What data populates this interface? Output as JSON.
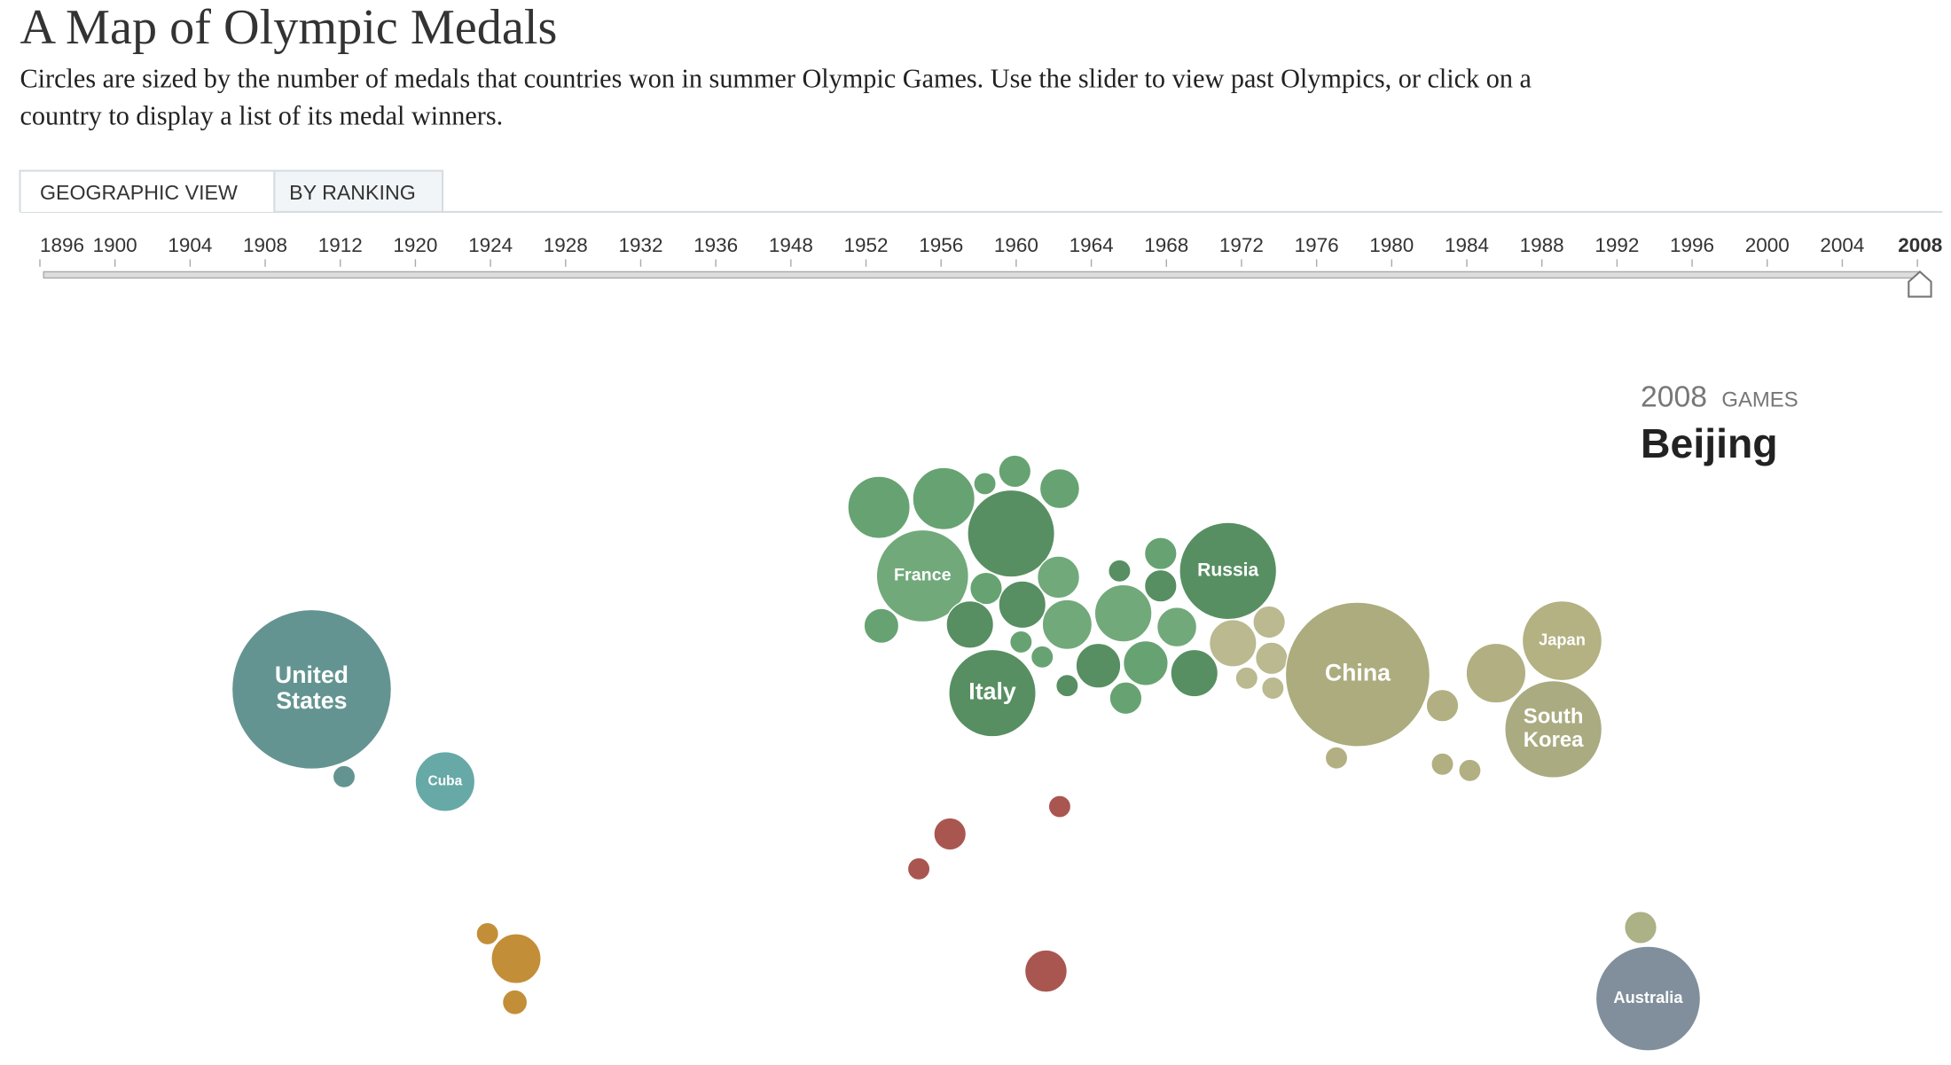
{
  "header": {
    "title": "A Map of Olympic Medals",
    "description": [
      "Circles are sized by the number of medals that countries won in summer Olympic Games. Use the slider to view past Olympics, or click on a",
      "country to display a list of its medal winners."
    ]
  },
  "tabs": [
    "GEOGRAPHIC VIEW",
    "BY RANKING"
  ],
  "years": [
    "1896",
    "1900",
    "1904",
    "1908",
    "1912",
    "1920",
    "1924",
    "1928",
    "1932",
    "1936",
    "1948",
    "1952",
    "1956",
    "1960",
    "1964",
    "1968",
    "1972",
    "1976",
    "1980",
    "1984",
    "1988",
    "1992",
    "1996",
    "2000",
    "2004",
    "2008"
  ],
  "games": {
    "year": "2008",
    "label": "GAMES",
    "city": "Beijing"
  },
  "circle_labels": [
    [
      "United",
      "States"
    ],
    [
      "Cuba"
    ],
    [
      "France"
    ],
    [
      "Italy"
    ],
    [
      "Russia"
    ],
    [
      "China"
    ],
    [
      "Japan"
    ],
    [
      "South",
      "Korea"
    ],
    [
      "Australia"
    ]
  ]
}
